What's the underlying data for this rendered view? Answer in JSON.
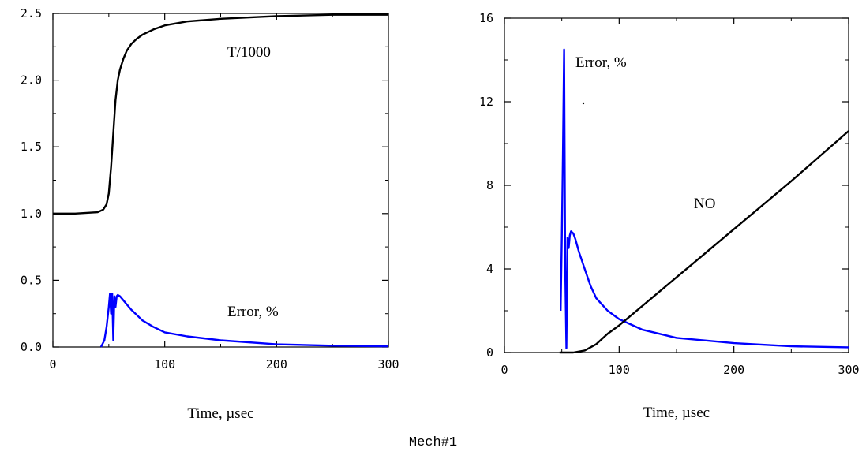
{
  "caption": "Mech#1",
  "chart_data": [
    {
      "type": "line",
      "xlabel": "Time,  µsec",
      "ylabel": "",
      "xlim": [
        0,
        300
      ],
      "ylim": [
        0,
        2.5
      ],
      "x_ticks": [
        "0",
        "100",
        "200",
        "300"
      ],
      "y_ticks": [
        "0.0",
        "0.5",
        "1.0",
        "1.5",
        "2.0",
        "2.5"
      ],
      "annotations": [
        "T/1000",
        "Error, %"
      ],
      "series": [
        {
          "name": "T/1000",
          "color": "#000000",
          "x": [
            0,
            20,
            40,
            45,
            48,
            50,
            52,
            54,
            56,
            58,
            60,
            63,
            66,
            70,
            75,
            80,
            90,
            100,
            120,
            150,
            200,
            250,
            300
          ],
          "y": [
            1.0,
            1.0,
            1.01,
            1.03,
            1.07,
            1.15,
            1.35,
            1.6,
            1.85,
            2.0,
            2.08,
            2.16,
            2.22,
            2.27,
            2.31,
            2.34,
            2.38,
            2.41,
            2.44,
            2.46,
            2.48,
            2.49,
            2.49
          ]
        },
        {
          "name": "Error, %",
          "color": "#0000ff",
          "x": [
            43,
            46,
            48,
            50,
            51,
            52,
            53,
            54,
            55,
            56,
            57,
            58,
            60,
            63,
            66,
            70,
            75,
            80,
            90,
            100,
            120,
            150,
            200,
            250,
            300
          ],
          "y": [
            0.0,
            0.05,
            0.15,
            0.3,
            0.4,
            0.25,
            0.4,
            0.05,
            0.38,
            0.3,
            0.38,
            0.39,
            0.38,
            0.35,
            0.32,
            0.28,
            0.24,
            0.2,
            0.15,
            0.11,
            0.08,
            0.05,
            0.02,
            0.01,
            0.005
          ]
        }
      ]
    },
    {
      "type": "line",
      "xlabel": "Time,  µsec",
      "ylabel": "",
      "xlim": [
        0,
        300
      ],
      "ylim": [
        0,
        16
      ],
      "x_ticks": [
        "0",
        "100",
        "200",
        "300"
      ],
      "y_ticks": [
        "0",
        "4",
        "8",
        "12",
        "16"
      ],
      "annotations": [
        "Error, %",
        "NO"
      ],
      "series": [
        {
          "name": "Error, %",
          "color": "#0000ff",
          "x": [
            49,
            50,
            51,
            52,
            53,
            54,
            55,
            56,
            57,
            58,
            60,
            62,
            65,
            70,
            75,
            80,
            90,
            100,
            120,
            150,
            200,
            250,
            300
          ],
          "y": [
            2.0,
            5.5,
            9.5,
            14.5,
            4.0,
            0.2,
            5.5,
            5.0,
            5.6,
            5.8,
            5.7,
            5.4,
            4.8,
            4.0,
            3.2,
            2.6,
            2.0,
            1.6,
            1.1,
            0.7,
            0.45,
            0.3,
            0.25
          ]
        },
        {
          "name": "NO",
          "color": "#000000",
          "x": [
            48,
            60,
            70,
            80,
            90,
            100,
            150,
            200,
            250,
            300
          ],
          "y": [
            0.0,
            0.0,
            0.1,
            0.4,
            0.9,
            1.3,
            3.6,
            5.9,
            8.2,
            10.6
          ]
        }
      ]
    }
  ]
}
